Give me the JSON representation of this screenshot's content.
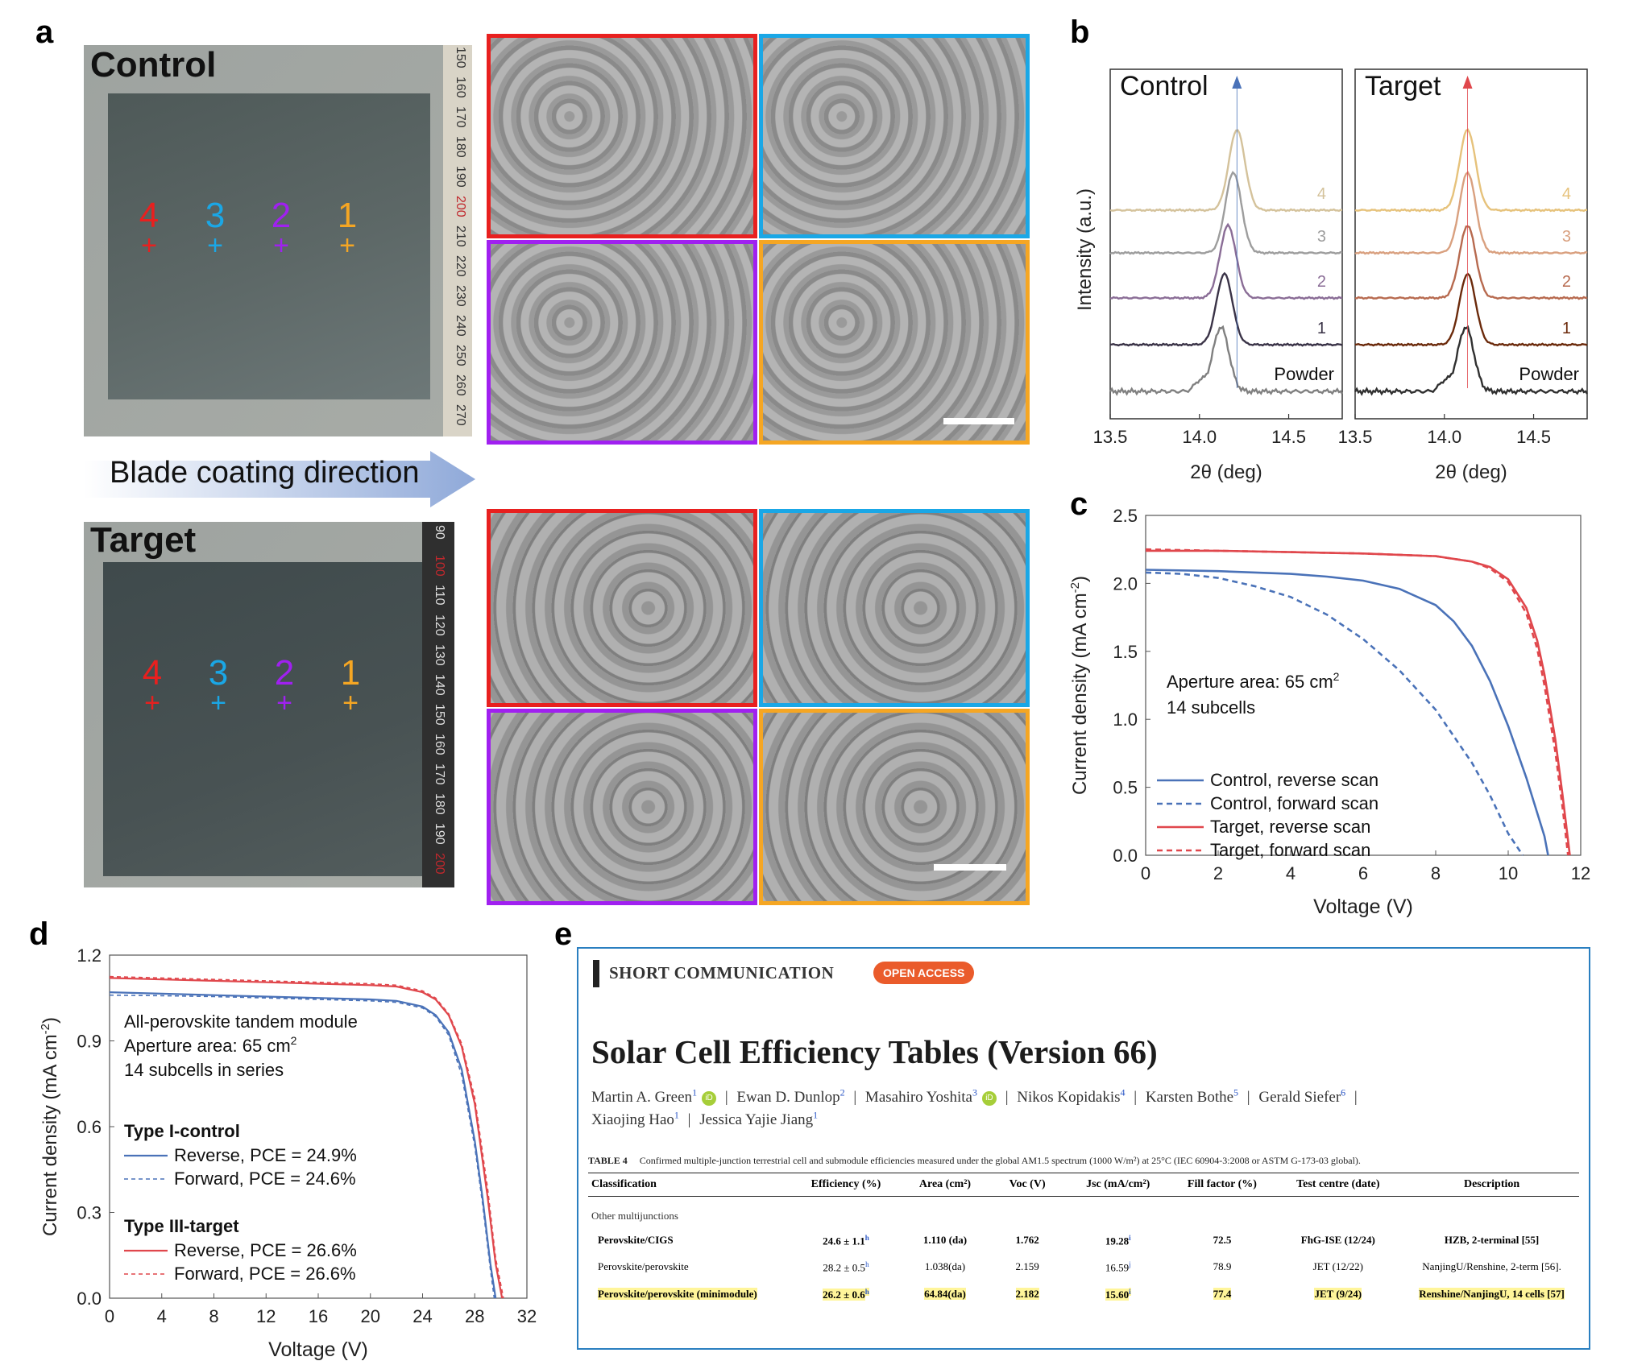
{
  "panel_labels": {
    "a": "a",
    "b": "b",
    "c": "c",
    "d": "d",
    "e": "e"
  },
  "panel_a": {
    "control_title": "Control",
    "target_title": "Target",
    "blade_direction": "Blade coating direction",
    "markers": [
      "4",
      "3",
      "2",
      "1"
    ],
    "marker_colors": [
      "#e8201f",
      "#1aa7e6",
      "#a020f0",
      "#f5a623"
    ],
    "tile_border_colors": [
      "#e8201f",
      "#1aa7e6",
      "#a020f0",
      "#f5a623"
    ],
    "ruler_control": [
      "150",
      "160",
      "170",
      "180",
      "190",
      "200",
      "210",
      "220",
      "230",
      "240",
      "250",
      "260",
      "270"
    ],
    "ruler_target": [
      "90",
      "100",
      "110",
      "120",
      "130",
      "140",
      "150",
      "160",
      "170",
      "180",
      "190",
      "200"
    ]
  },
  "panel_b": {
    "ylabel": "Intensity (a.u.)",
    "xlabel": "2θ (deg)",
    "control_title": "Control",
    "target_title": "Target",
    "traces": [
      "4",
      "3",
      "2",
      "1",
      "Powder"
    ],
    "xticks": [
      "13.5",
      "14.0",
      "14.5"
    ]
  },
  "chart_data": [
    {
      "type": "line",
      "panel": "b-control",
      "title": "Control",
      "xlabel": "2θ (deg)",
      "ylabel": "Intensity (a.u.)",
      "xlim": [
        13.5,
        14.8
      ],
      "series": [
        {
          "name": "4",
          "color": "#d4c29b",
          "peak": 14.21
        },
        {
          "name": "3",
          "color": "#9d9d9d",
          "peak": 14.19
        },
        {
          "name": "2",
          "color": "#8a6d96",
          "peak": 14.16
        },
        {
          "name": "1",
          "color": "#3a3347",
          "peak": 14.14
        },
        {
          "name": "Powder",
          "color": "#808080",
          "peak": 14.12
        }
      ]
    },
    {
      "type": "line",
      "panel": "b-target",
      "title": "Target",
      "xlabel": "2θ (deg)",
      "ylabel": "",
      "xlim": [
        13.5,
        14.8
      ],
      "series": [
        {
          "name": "4",
          "color": "#e6c27b",
          "peak": 14.13
        },
        {
          "name": "3",
          "color": "#d9a07f",
          "peak": 14.13
        },
        {
          "name": "2",
          "color": "#b76a4f",
          "peak": 14.13
        },
        {
          "name": "1",
          "color": "#6b2a0b",
          "peak": 14.13
        },
        {
          "name": "Powder",
          "color": "#303030",
          "peak": 14.12
        }
      ]
    },
    {
      "type": "line",
      "panel": "c",
      "xlabel": "Voltage (V)",
      "ylabel": "Current density (mA cm-2)",
      "xlim": [
        0,
        12
      ],
      "ylim": [
        0,
        2.5
      ],
      "xticks": [
        "0",
        "2",
        "4",
        "6",
        "8",
        "10",
        "12"
      ],
      "yticks": [
        "0.0",
        "0.5",
        "1.0",
        "1.5",
        "2.0",
        "2.5"
      ],
      "annotation": [
        "Aperture area: 65 cm",
        "2",
        "14 subcells"
      ],
      "series": [
        {
          "name": "Control, reverse scan",
          "style": "solid",
          "color": "#4a72b8",
          "x": [
            0,
            2,
            4,
            5,
            6,
            7,
            8,
            8.5,
            9,
            9.5,
            10,
            10.5,
            11,
            11.1
          ],
          "y": [
            2.1,
            2.09,
            2.07,
            2.05,
            2.02,
            1.96,
            1.84,
            1.72,
            1.54,
            1.28,
            0.95,
            0.57,
            0.14,
            0
          ]
        },
        {
          "name": "Control, forward scan",
          "style": "dashed",
          "color": "#4a72b8",
          "x": [
            0,
            1,
            2,
            3,
            4,
            5,
            6,
            7,
            8,
            9,
            9.5,
            10,
            10.4
          ],
          "y": [
            2.08,
            2.07,
            2.04,
            1.98,
            1.9,
            1.77,
            1.59,
            1.36,
            1.07,
            0.68,
            0.44,
            0.16,
            0
          ]
        },
        {
          "name": "Target, reverse scan",
          "style": "solid",
          "color": "#e0474c",
          "x": [
            0,
            2,
            4,
            6,
            8,
            9,
            9.5,
            10,
            10.5,
            10.8,
            11,
            11.3,
            11.5,
            11.7
          ],
          "y": [
            2.24,
            2.24,
            2.23,
            2.22,
            2.2,
            2.16,
            2.12,
            2.03,
            1.82,
            1.58,
            1.33,
            0.85,
            0.44,
            0
          ]
        },
        {
          "name": "Target, forward scan",
          "style": "dashed",
          "color": "#e0474c",
          "x": [
            0,
            2,
            4,
            6,
            8,
            9,
            9.5,
            10,
            10.5,
            10.8,
            11,
            11.3,
            11.5,
            11.65
          ],
          "y": [
            2.25,
            2.24,
            2.23,
            2.22,
            2.2,
            2.16,
            2.11,
            2.01,
            1.78,
            1.52,
            1.25,
            0.76,
            0.35,
            0
          ]
        }
      ]
    },
    {
      "type": "line",
      "panel": "d",
      "xlabel": "Voltage (V)",
      "ylabel": "Current density (mA cm-2)",
      "xlim": [
        0,
        32
      ],
      "ylim": [
        0,
        1.2
      ],
      "xticks": [
        "0",
        "4",
        "8",
        "12",
        "16",
        "20",
        "24",
        "28",
        "32"
      ],
      "yticks": [
        "0.0",
        "0.3",
        "0.6",
        "0.9",
        "1.2"
      ],
      "annotation": [
        "All-perovskite tandem module",
        "Aperture area: 65 cm",
        "2",
        "14 subcells in series"
      ],
      "groups": [
        "Type I-control",
        "Type III-target"
      ],
      "series": [
        {
          "name": "Reverse, PCE = 24.9%",
          "group": "Type I-control",
          "style": "solid",
          "color": "#4a72b8",
          "x": [
            0,
            4,
            8,
            12,
            16,
            20,
            22,
            24,
            25,
            26,
            27,
            28,
            28.6,
            29.2,
            29.6
          ],
          "y": [
            1.07,
            1.065,
            1.06,
            1.055,
            1.05,
            1.045,
            1.04,
            1.02,
            0.99,
            0.93,
            0.8,
            0.55,
            0.35,
            0.12,
            0
          ]
        },
        {
          "name": "Forward, PCE = 24.6%",
          "group": "Type I-control",
          "style": "dashed",
          "color": "#4a72b8",
          "x": [
            0,
            4,
            8,
            12,
            16,
            20,
            22,
            24,
            25,
            26,
            27,
            28,
            28.6,
            29.2,
            29.5
          ],
          "y": [
            1.06,
            1.058,
            1.055,
            1.05,
            1.045,
            1.04,
            1.035,
            1.015,
            0.985,
            0.92,
            0.78,
            0.53,
            0.33,
            0.1,
            0
          ]
        },
        {
          "name": "Reverse, PCE = 26.6%",
          "group": "Type III-target",
          "style": "solid",
          "color": "#e0474c",
          "x": [
            0,
            4,
            8,
            12,
            16,
            20,
            22,
            24,
            25,
            26,
            27,
            28,
            29,
            29.6,
            30.1
          ],
          "y": [
            1.12,
            1.115,
            1.11,
            1.105,
            1.1,
            1.095,
            1.09,
            1.07,
            1.045,
            0.99,
            0.88,
            0.68,
            0.35,
            0.12,
            0
          ]
        },
        {
          "name": "Forward, PCE = 26.6%",
          "group": "Type III-target",
          "style": "dashed",
          "color": "#e0474c",
          "x": [
            0,
            4,
            8,
            12,
            16,
            20,
            22,
            24,
            25,
            26,
            27,
            28,
            29,
            29.6,
            30.2
          ],
          "y": [
            1.125,
            1.12,
            1.115,
            1.11,
            1.105,
            1.1,
            1.095,
            1.075,
            1.05,
            0.995,
            0.89,
            0.7,
            0.38,
            0.14,
            0
          ]
        }
      ]
    }
  ],
  "panel_e": {
    "header_tag": "SHORT COMMUNICATION",
    "open_access": "OPEN ACCESS",
    "title": "Solar Cell Efficiency Tables (Version 66)",
    "authors_line1": [
      {
        "name": "Martin A. Green",
        "sup": "1",
        "orcid": true
      },
      {
        "name": "Ewan D. Dunlop",
        "sup": "2",
        "orcid": false
      },
      {
        "name": "Masahiro Yoshita",
        "sup": "3",
        "orcid": true
      },
      {
        "name": "Nikos Kopidakis",
        "sup": "4",
        "orcid": false
      },
      {
        "name": "Karsten Bothe",
        "sup": "5",
        "orcid": false
      },
      {
        "name": "Gerald Siefer",
        "sup": "6",
        "orcid": false
      }
    ],
    "authors_line2": [
      {
        "name": "Xiaojing Hao",
        "sup": "1"
      },
      {
        "name": "Jessica Yajie Jiang",
        "sup": "1"
      }
    ],
    "table_caption_label": "TABLE 4",
    "table_caption": "Confirmed multiple-junction terrestrial cell and submodule efficiencies measured under the global AM1.5 spectrum (1000 W/m²) at 25°C (IEC 60904-3:2008 or ASTM G-173-03 global).",
    "columns": [
      "Classification",
      "Efficiency (%)",
      "Area (cm²)",
      "Voc (V)",
      "Jsc (mA/cm²)",
      "Fill factor (%)",
      "Test centre (date)",
      "Description"
    ],
    "section": "Other multijunctions",
    "rows": [
      {
        "bold": true,
        "hl": false,
        "cells": [
          "Perovskite/CIGS",
          "24.6 ± 1.1",
          "1.110 (da)",
          "1.762",
          "19.28",
          "72.5",
          "FhG-ISE (12/24)",
          "HZB, 2-terminal [55]"
        ],
        "sups": [
          "",
          "h",
          "",
          "",
          "i",
          "",
          "",
          ""
        ]
      },
      {
        "bold": false,
        "hl": false,
        "cells": [
          "Perovskite/perovskite",
          "28.2 ± 0.5",
          "1.038(da)",
          "2.159",
          "16.59",
          "78.9",
          "JET (12/22)",
          "NanjingU/Renshine, 2-term [56]."
        ],
        "sups": [
          "",
          "h",
          "",
          "",
          "j",
          "",
          "",
          ""
        ]
      },
      {
        "bold": true,
        "hl": true,
        "cells": [
          "Perovskite/perovskite (minimodule)",
          "26.2 ± 0.6",
          "64.84(da)",
          "2.182",
          "15.60",
          "77.4",
          "JET (9/24)",
          "Renshine/NanjingU, 14 cells [57]"
        ],
        "sups": [
          "",
          "h",
          "",
          "",
          "i",
          "",
          "",
          ""
        ]
      }
    ]
  }
}
